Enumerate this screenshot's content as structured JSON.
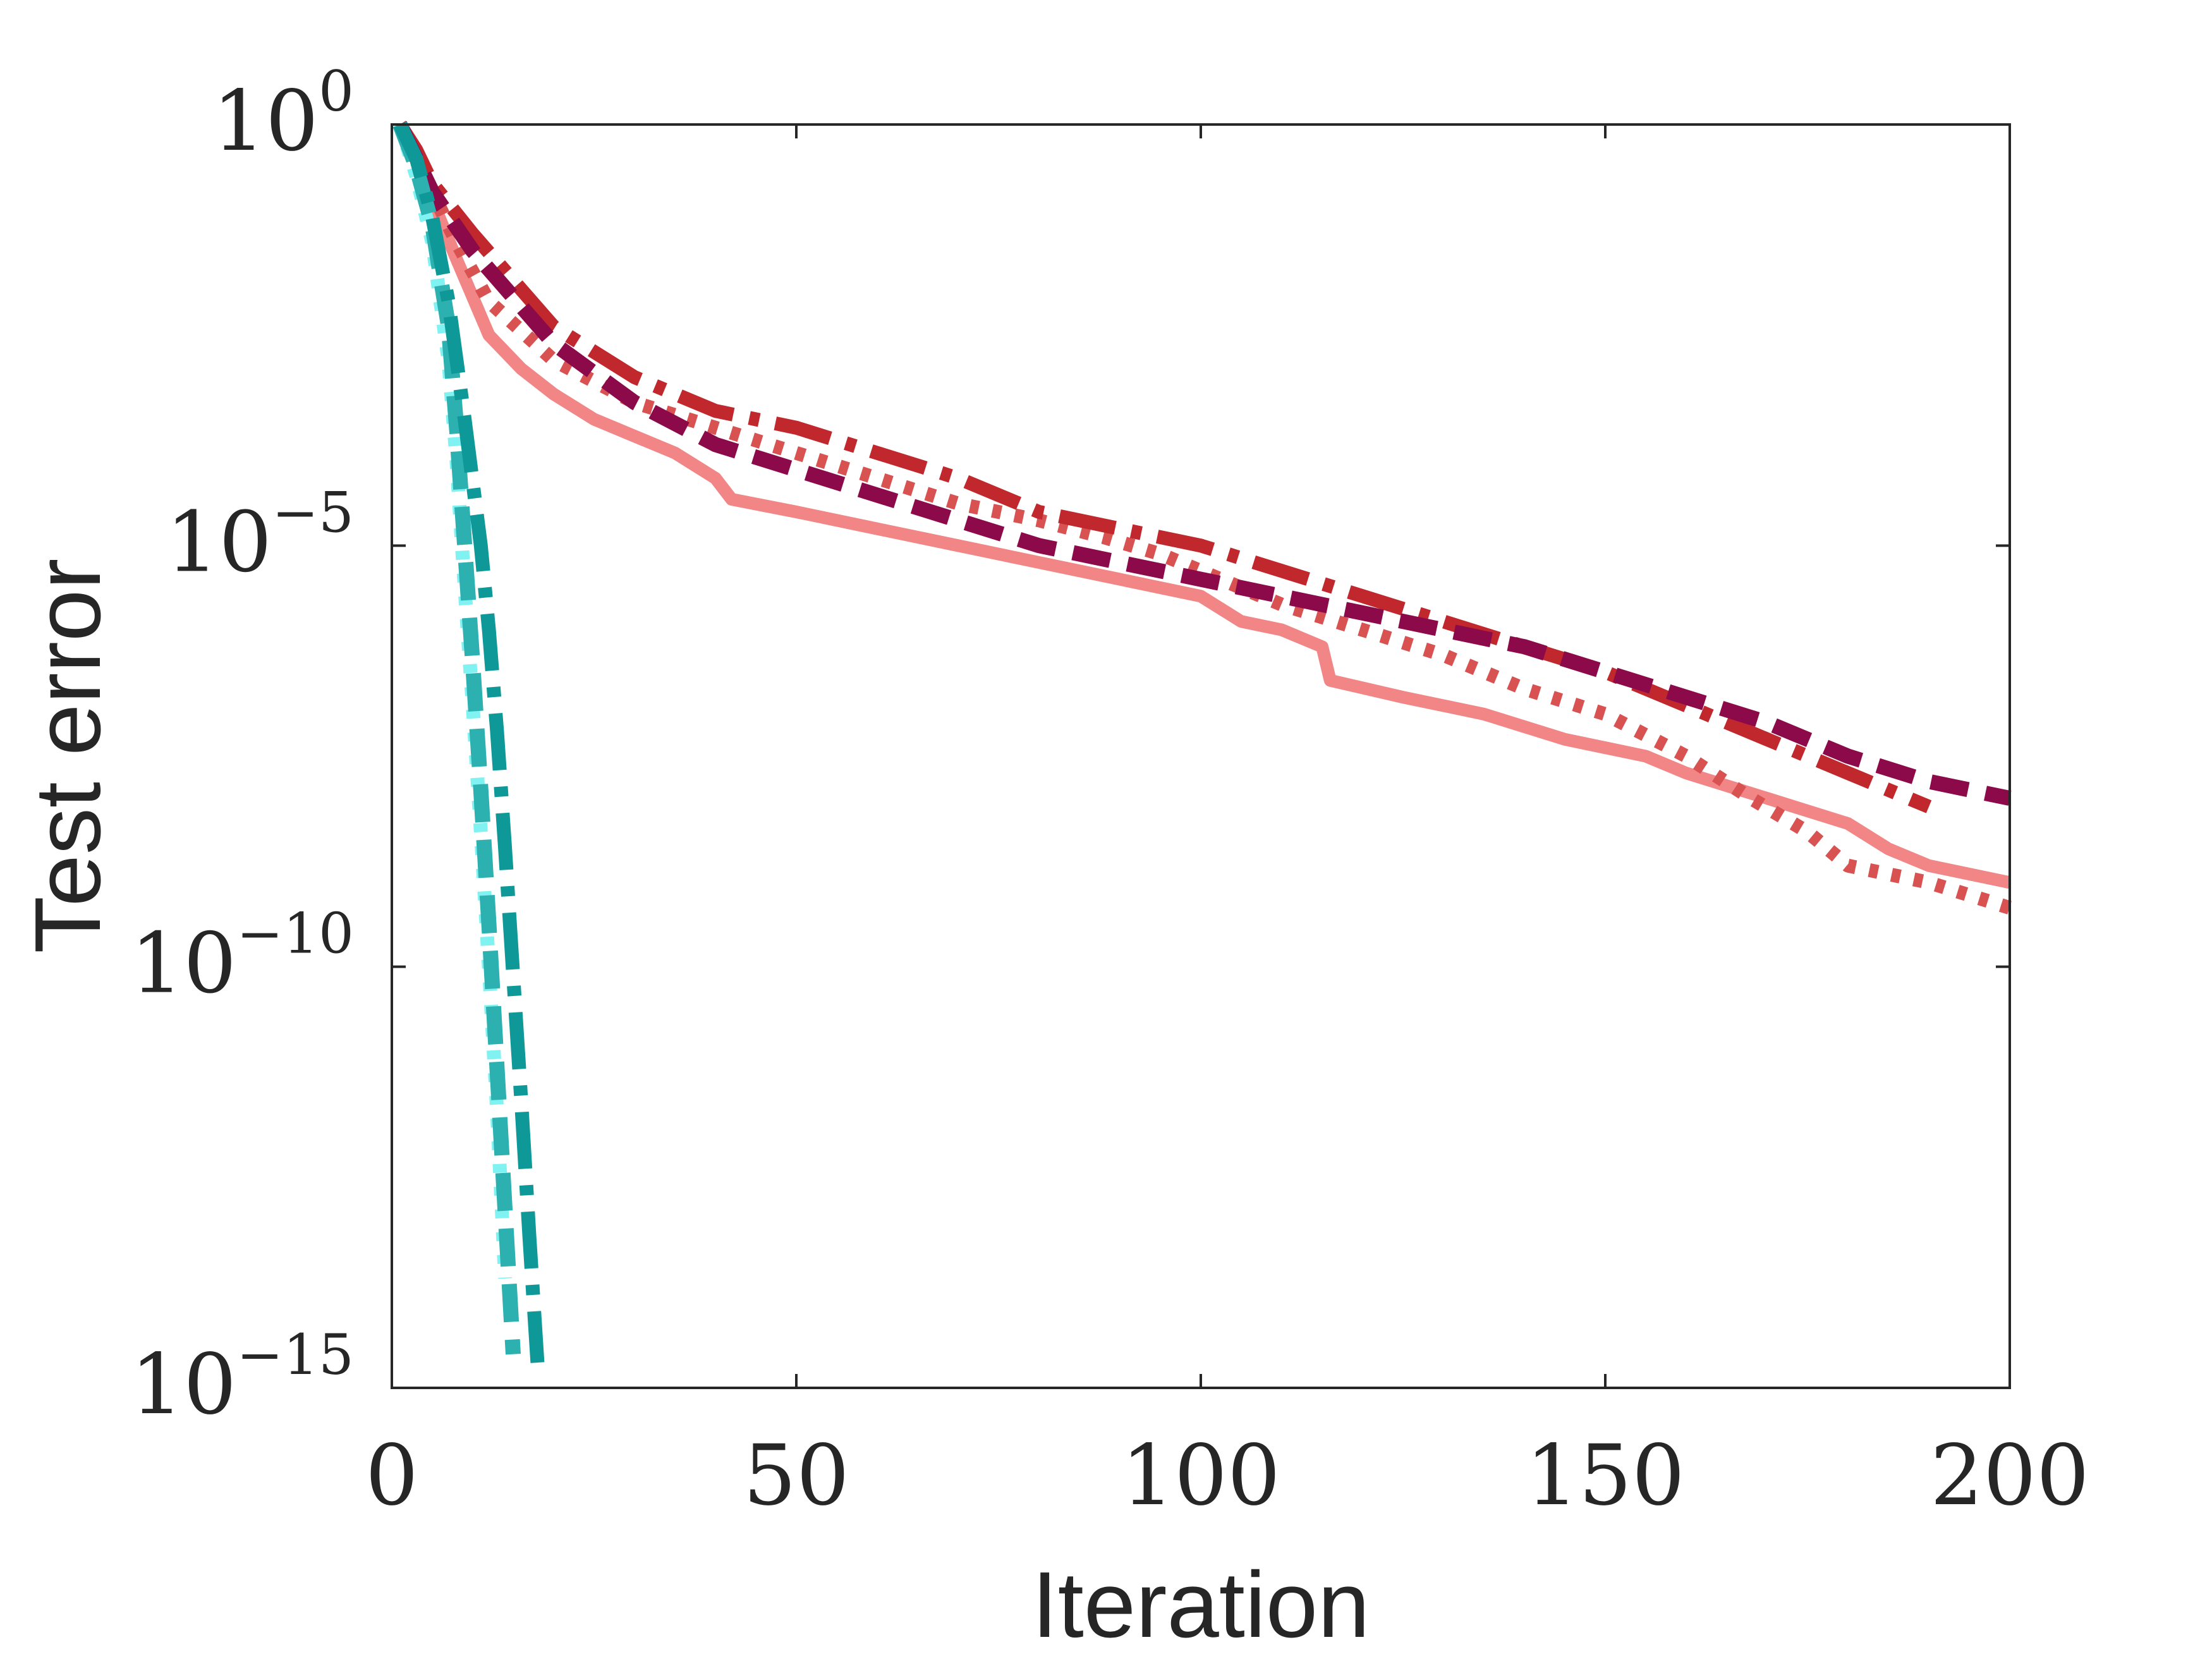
{
  "chart_data": {
    "type": "line",
    "title": "",
    "xlabel": "Iteration",
    "ylabel": "Test error",
    "xlim": [
      0,
      200
    ],
    "ylim_log10": [
      -15,
      0
    ],
    "yscale": "log",
    "grid": false,
    "legend": "none",
    "x_ticks": [
      {
        "value": 0,
        "label": "0"
      },
      {
        "value": 50,
        "label": "50"
      },
      {
        "value": 100,
        "label": "100"
      },
      {
        "value": 150,
        "label": "150"
      },
      {
        "value": 200,
        "label": "200"
      }
    ],
    "y_ticks": [
      {
        "exp": 0,
        "base": "10",
        "sup": "0"
      },
      {
        "exp": -5,
        "base": "10",
        "sup": "−5"
      },
      {
        "exp": -10,
        "base": "10",
        "sup": "−10"
      },
      {
        "exp": -15,
        "base": "10",
        "sup": "−15"
      }
    ],
    "series": [
      {
        "name": "pink-solid",
        "color": "#f28585",
        "style": "solid",
        "x": [
          1,
          3,
          5,
          8,
          12,
          16,
          20,
          25,
          30,
          35,
          40,
          42,
          50,
          60,
          70,
          80,
          90,
          100,
          105,
          110,
          115,
          116,
          125,
          135,
          145,
          155,
          160,
          170,
          180,
          185,
          190,
          200
        ],
        "log10y": [
          0,
          -0.4,
          -0.9,
          -1.6,
          -2.5,
          -2.9,
          -3.2,
          -3.5,
          -3.7,
          -3.9,
          -4.2,
          -4.45,
          -4.6,
          -4.8,
          -5.0,
          -5.2,
          -5.4,
          -5.6,
          -5.9,
          -6.0,
          -6.2,
          -6.6,
          -6.8,
          -7.0,
          -7.3,
          -7.5,
          -7.7,
          -8.0,
          -8.3,
          -8.6,
          -8.8,
          -9.0
        ]
      },
      {
        "name": "red-dotted",
        "color": "#d95252",
        "style": "dotted",
        "x": [
          1,
          3,
          5,
          8,
          12,
          20,
          30,
          40,
          50,
          60,
          70,
          80,
          88,
          95,
          100,
          105,
          110,
          120,
          130,
          140,
          150,
          160,
          168,
          175,
          180,
          190,
          200
        ],
        "log10y": [
          0,
          -0.4,
          -0.8,
          -1.4,
          -2.1,
          -2.8,
          -3.3,
          -3.6,
          -3.9,
          -4.2,
          -4.5,
          -4.7,
          -4.9,
          -5.1,
          -5.3,
          -5.5,
          -5.7,
          -6.0,
          -6.3,
          -6.7,
          -7.0,
          -7.5,
          -8.0,
          -8.4,
          -8.8,
          -9.0,
          -9.3
        ]
      },
      {
        "name": "red-dashdot",
        "color": "#c0282d",
        "style": "dashdot",
        "x": [
          1,
          3,
          5,
          10,
          20,
          30,
          40,
          50,
          60,
          70,
          80,
          90,
          100,
          110,
          120,
          130,
          140,
          150,
          160,
          170,
          180,
          190
        ],
        "log10y": [
          0,
          -0.3,
          -0.7,
          -1.3,
          -2.4,
          -3.0,
          -3.4,
          -3.6,
          -3.9,
          -4.2,
          -4.6,
          -4.8,
          -5.0,
          -5.3,
          -5.6,
          -5.9,
          -6.2,
          -6.5,
          -6.9,
          -7.3,
          -7.7,
          -8.1
        ]
      },
      {
        "name": "maroon-dashed",
        "color": "#8c0a4a",
        "style": "dashed",
        "x": [
          1,
          3,
          5,
          10,
          20,
          30,
          40,
          50,
          60,
          70,
          80,
          90,
          100,
          110,
          120,
          130,
          140,
          150,
          160,
          170,
          180,
          190,
          200
        ],
        "log10y": [
          0,
          -0.4,
          -0.8,
          -1.5,
          -2.6,
          -3.3,
          -3.8,
          -4.1,
          -4.4,
          -4.7,
          -5.0,
          -5.2,
          -5.4,
          -5.6,
          -5.8,
          -6.0,
          -6.2,
          -6.5,
          -6.8,
          -7.1,
          -7.5,
          -7.8,
          -8.0
        ]
      },
      {
        "name": "cyan-light",
        "color": "#80f2f2",
        "style": "dotted",
        "x": [
          1,
          3,
          5,
          7,
          8,
          9,
          10,
          11,
          12,
          13,
          14
        ],
        "log10y": [
          0,
          -0.6,
          -1.4,
          -2.8,
          -4.0,
          -5.5,
          -6.9,
          -8.4,
          -10.0,
          -11.7,
          -13.7
        ]
      },
      {
        "name": "teal-mid",
        "color": "#2cb0b0",
        "style": "dashed",
        "x": [
          1,
          3,
          5,
          7,
          8,
          9,
          10,
          11,
          12,
          13,
          14,
          15
        ],
        "log10y": [
          0,
          -0.5,
          -1.2,
          -2.4,
          -3.6,
          -5.0,
          -6.4,
          -7.9,
          -9.5,
          -11.2,
          -12.9,
          -14.6
        ]
      },
      {
        "name": "teal-dark",
        "color": "#0f9898",
        "style": "dashdot",
        "x": [
          1,
          3,
          5,
          7,
          9,
          11,
          12,
          13,
          14,
          15,
          16,
          17,
          18
        ],
        "log10y": [
          0,
          -0.4,
          -1.1,
          -2.1,
          -3.5,
          -5.0,
          -6.0,
          -7.2,
          -8.6,
          -10.1,
          -11.6,
          -13.2,
          -14.7
        ]
      }
    ]
  }
}
